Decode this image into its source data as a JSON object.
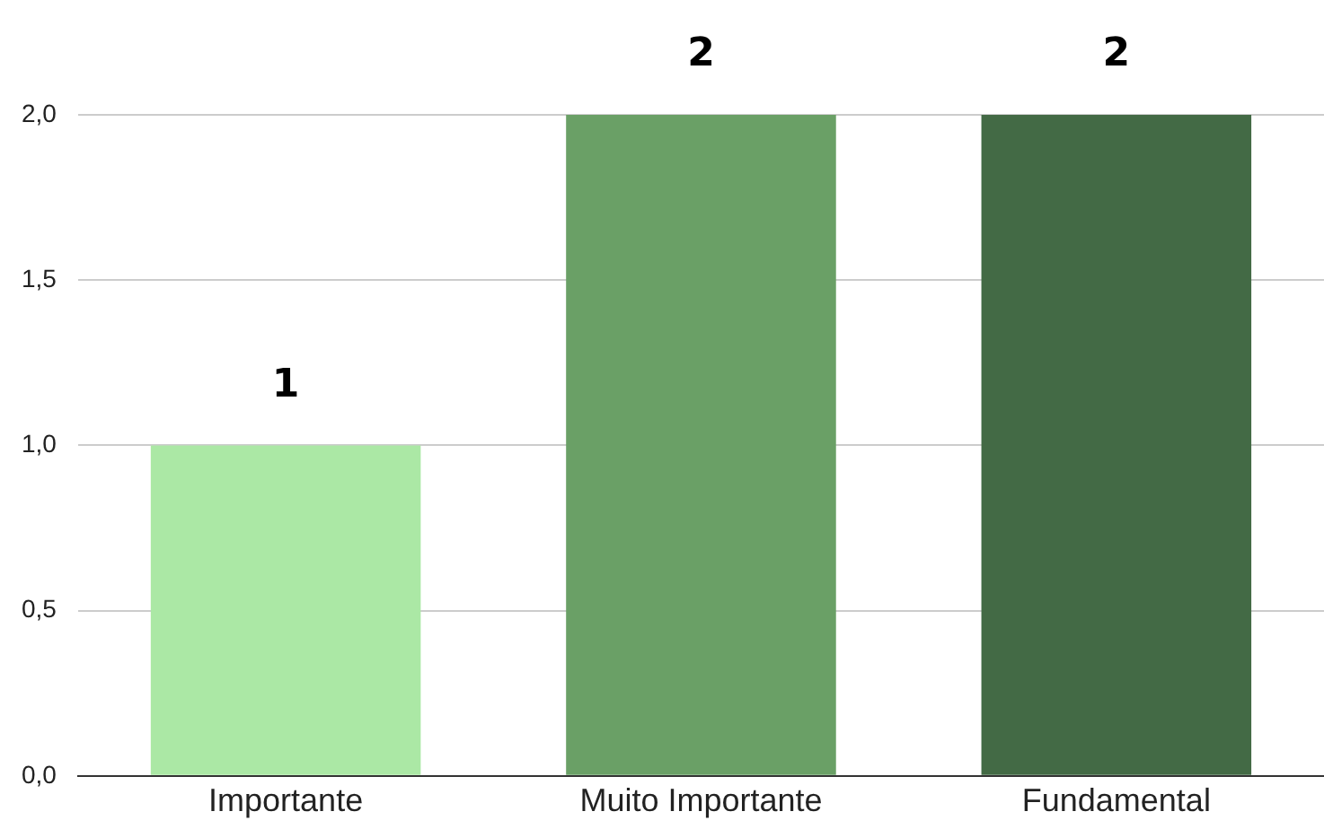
{
  "chart_data": {
    "type": "bar",
    "categories": [
      "Importante",
      "Muito Importante",
      "Fundamental"
    ],
    "values": [
      1,
      2,
      2
    ],
    "colors": [
      "#abe8a5",
      "#6aa066",
      "#436a45"
    ],
    "ylim": [
      0,
      2
    ],
    "yticks": [
      {
        "value": 0,
        "label": "0,0"
      },
      {
        "value": 0.5,
        "label": "0,5"
      },
      {
        "value": 1,
        "label": "1,0"
      },
      {
        "value": 1.5,
        "label": "1,5"
      },
      {
        "value": 2,
        "label": "2,0"
      }
    ],
    "grid": "y",
    "legend": false,
    "data_labels": true
  }
}
